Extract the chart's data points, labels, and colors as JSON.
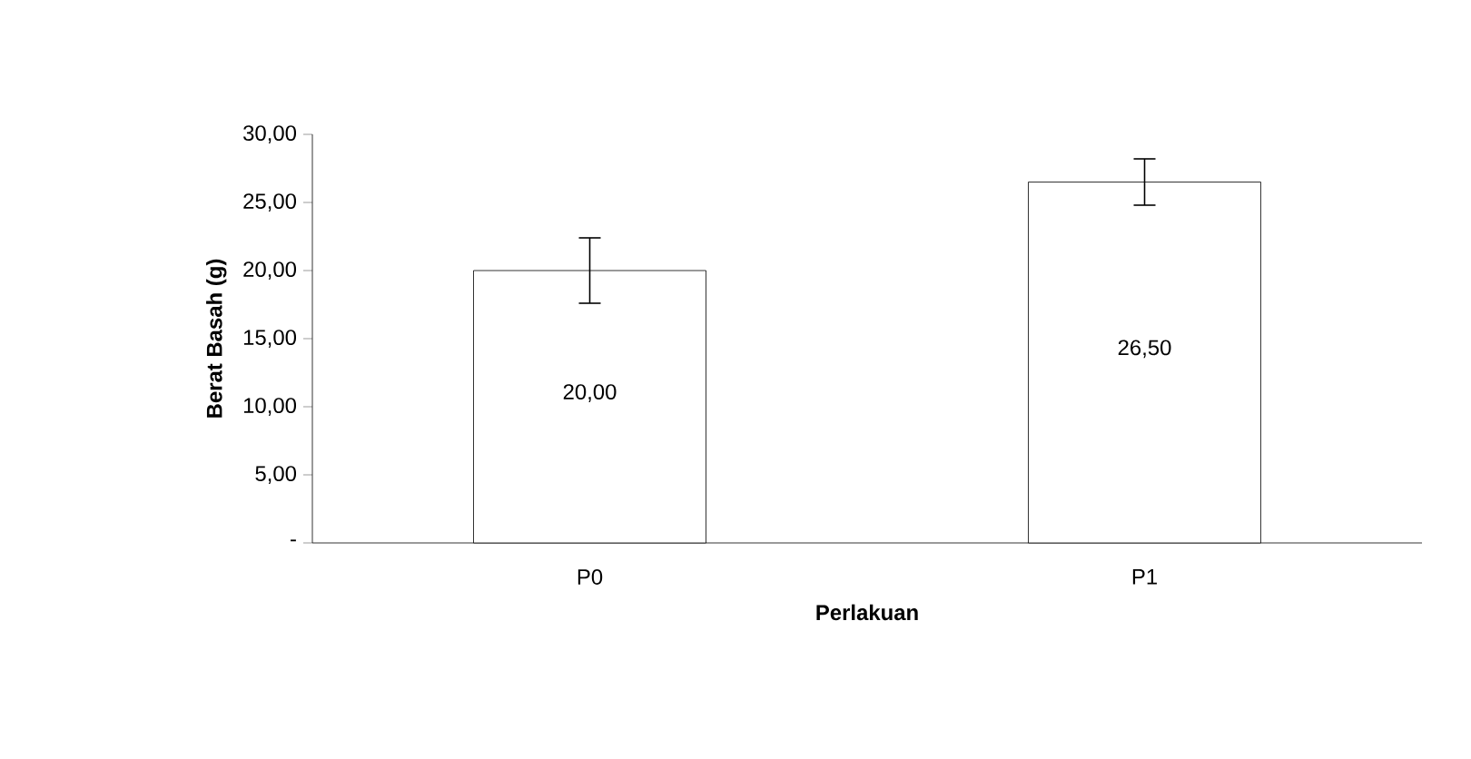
{
  "chart_data": {
    "type": "bar",
    "xlabel": "Perlakuan",
    "ylabel": "Berat Basah (g)",
    "categories": [
      "P0",
      "P1"
    ],
    "values": [
      20.0,
      26.5
    ],
    "errors": [
      2.4,
      1.7
    ],
    "value_labels": [
      "20,00",
      "26,50"
    ],
    "color": "#ffffff",
    "ylim": [
      0,
      30
    ],
    "yticks": [
      {
        "value": 0,
        "label": "-"
      },
      {
        "value": 5,
        "label": "5,00"
      },
      {
        "value": 10,
        "label": "10,00"
      },
      {
        "value": 15,
        "label": "15,00"
      },
      {
        "value": 20,
        "label": "20,00"
      },
      {
        "value": 25,
        "label": "25,00"
      },
      {
        "value": 30,
        "label": "30,00"
      }
    ],
    "grid": false
  }
}
